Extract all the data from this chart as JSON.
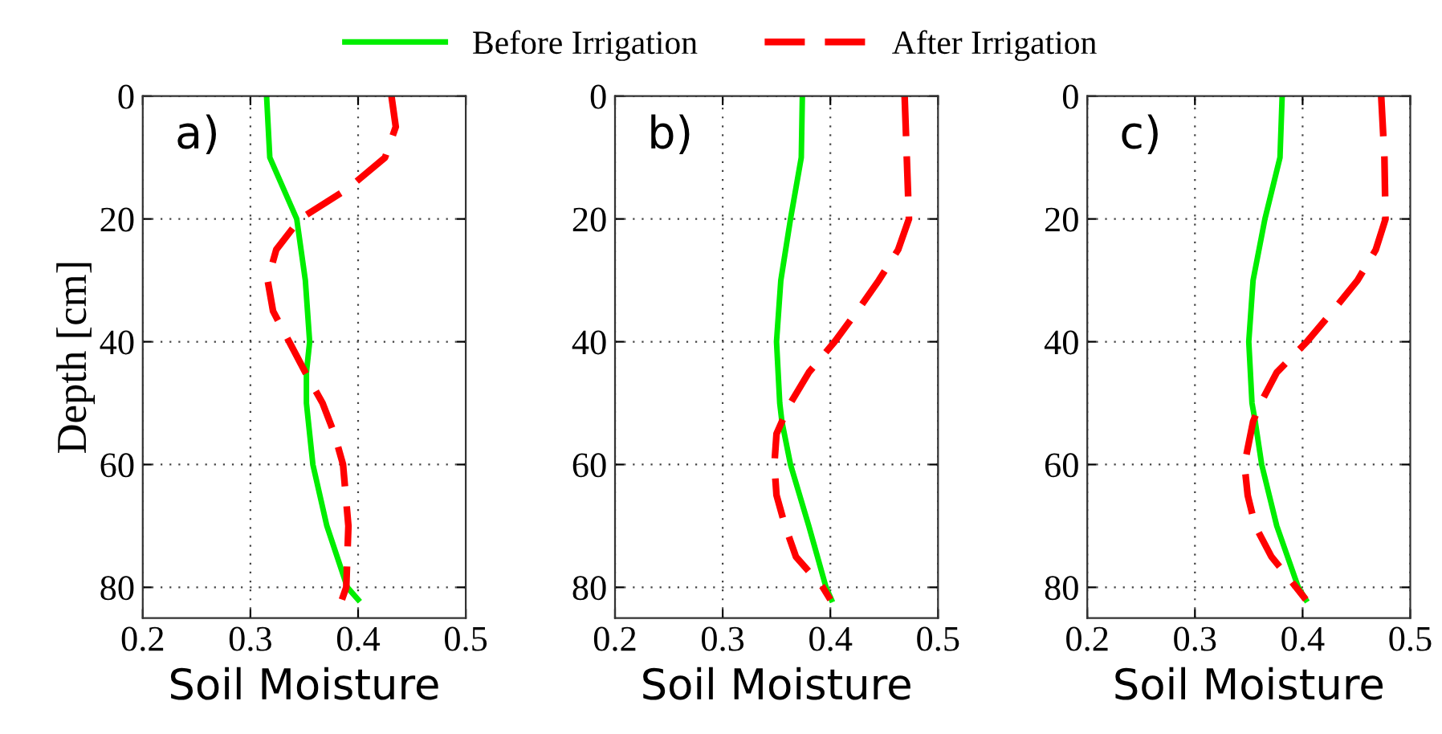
{
  "chart_data": [
    {
      "type": "line",
      "xlabel": "Soil Moisture",
      "ylabel": "Depth [cm]",
      "annotations": [
        "a)"
      ],
      "xlim": [
        0.2,
        0.5
      ],
      "xticks": [
        0.2,
        0.3,
        0.4,
        0.5
      ],
      "ylim": [
        85,
        0
      ],
      "yticks": [
        0,
        20,
        40,
        60,
        80
      ],
      "grid": true,
      "legend": "top",
      "series": [
        {
          "name": "Before Irrigation",
          "color": "#00ee00",
          "line_style": "solid",
          "x": [
            0.315,
            0.318,
            0.343,
            0.351,
            0.355,
            0.352,
            0.352,
            0.358,
            0.371,
            0.39,
            0.4
          ],
          "values": [
            0,
            10,
            20,
            30,
            40,
            45,
            50,
            60,
            70,
            80,
            82
          ]
        },
        {
          "name": "After Irrigation",
          "color": "#ff0000",
          "line_style": "dashed",
          "x": [
            0.431,
            0.435,
            0.425,
            0.391,
            0.346,
            0.324,
            0.316,
            0.321,
            0.336,
            0.351,
            0.367,
            0.378,
            0.386,
            0.391,
            0.389,
            0.385
          ],
          "values": [
            0,
            5,
            10,
            15,
            20,
            25,
            30,
            35,
            40,
            45,
            50,
            55,
            60,
            70,
            80,
            82
          ]
        }
      ]
    },
    {
      "type": "line",
      "xlabel": "Soil Moisture",
      "annotations": [
        "b)"
      ],
      "xlim": [
        0.2,
        0.5
      ],
      "xticks": [
        0.2,
        0.3,
        0.4,
        0.5
      ],
      "ylim": [
        85,
        0
      ],
      "yticks": [
        0,
        20,
        40,
        60,
        80
      ],
      "grid": true,
      "series": [
        {
          "color": "#00ee00",
          "line_style": "solid",
          "x": [
            0.374,
            0.373,
            0.363,
            0.354,
            0.35,
            0.353,
            0.355,
            0.363,
            0.38,
            0.396,
            0.401
          ],
          "values": [
            0,
            10,
            20,
            30,
            40,
            50,
            53,
            60,
            70,
            80,
            82
          ]
        },
        {
          "color": "#ff0000",
          "line_style": "dashed",
          "x": [
            0.469,
            0.471,
            0.473,
            0.463,
            0.445,
            0.425,
            0.404,
            0.38,
            0.363,
            0.355,
            0.35,
            0.348,
            0.35,
            0.358,
            0.368,
            0.393,
            0.4
          ],
          "values": [
            0,
            10,
            20,
            25,
            30,
            35,
            40,
            45,
            50,
            53,
            55,
            60,
            65,
            70,
            75,
            80,
            82
          ]
        }
      ]
    },
    {
      "type": "line",
      "xlabel": "Soil Moisture",
      "annotations": [
        "c)"
      ],
      "xlim": [
        0.2,
        0.5
      ],
      "xticks": [
        0.2,
        0.3,
        0.4,
        0.5
      ],
      "ylim": [
        85,
        0
      ],
      "yticks": [
        0,
        20,
        40,
        60,
        80
      ],
      "grid": true,
      "series": [
        {
          "color": "#00ee00",
          "line_style": "solid",
          "x": [
            0.381,
            0.379,
            0.365,
            0.354,
            0.35,
            0.353,
            0.356,
            0.362,
            0.376,
            0.396,
            0.403
          ],
          "values": [
            0,
            10,
            20,
            30,
            40,
            50,
            53,
            60,
            70,
            80,
            82
          ]
        },
        {
          "color": "#ff0000",
          "line_style": "dashed",
          "x": [
            0.473,
            0.476,
            0.477,
            0.468,
            0.451,
            0.428,
            0.404,
            0.376,
            0.361,
            0.354,
            0.346,
            0.349,
            0.356,
            0.371,
            0.394,
            0.403
          ],
          "values": [
            0,
            10,
            20,
            25,
            30,
            35,
            40,
            45,
            50,
            53,
            60,
            65,
            70,
            75,
            80,
            82
          ]
        }
      ]
    }
  ]
}
